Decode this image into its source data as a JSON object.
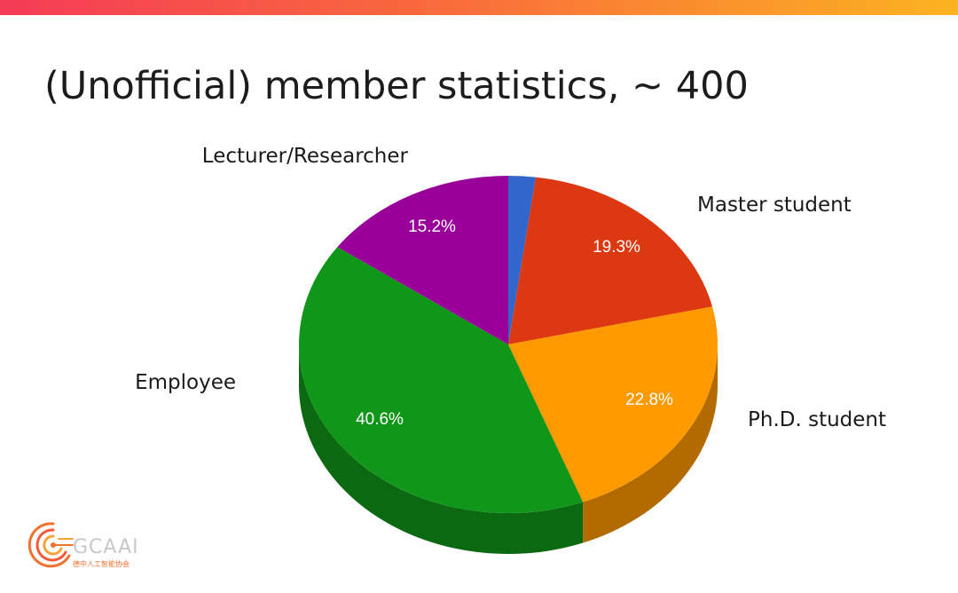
{
  "slide": {
    "title": "(Unofficial) member statistics, ~ 400",
    "accent_gradient": [
      "#f53b57",
      "#f96a3c",
      "#fbb321"
    ]
  },
  "chart_data": {
    "type": "pie",
    "style": "3d",
    "title": "",
    "slices": [
      {
        "label": "",
        "value": 2.1,
        "pct_label": "",
        "color": "#3366cc",
        "shadow": "#24478f"
      },
      {
        "label": "Master student",
        "value": 19.3,
        "pct_label": "19.3%",
        "color": "#dc3912",
        "shadow": "#9a280d"
      },
      {
        "label": "Ph.D. student",
        "value": 22.8,
        "pct_label": "22.8%",
        "color": "#ff9900",
        "shadow": "#b36b00"
      },
      {
        "label": "Employee",
        "value": 40.6,
        "pct_label": "40.6%",
        "color": "#109618",
        "shadow": "#0b6911"
      },
      {
        "label": "Lecturer/Researcher",
        "value": 15.2,
        "pct_label": "15.2%",
        "color": "#990099",
        "shadow": "#6b006b"
      }
    ]
  },
  "logo": {
    "name": "GCAAI",
    "subtitle": "德中人工智能协会",
    "ring_color": "#f0712e"
  }
}
